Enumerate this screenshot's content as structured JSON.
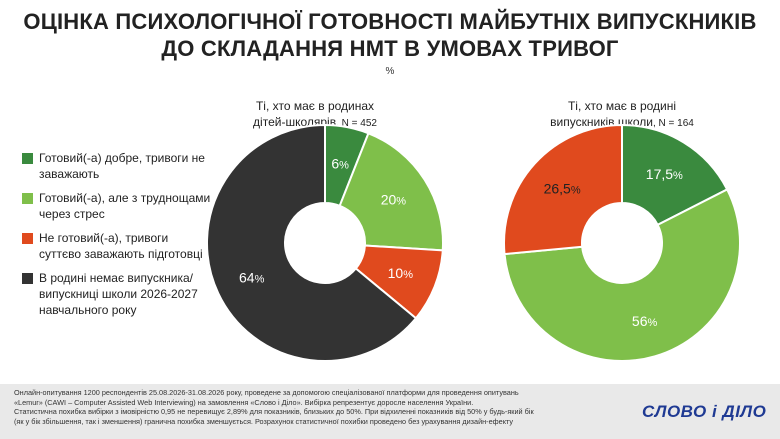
{
  "title_line1": "ОЦІНКА ПСИХОЛОГІЧНОЇ ГОТОВНОСТІ МАЙБУТНІХ ВИПУСКНИКІВ",
  "title_line2": "ДО СКЛАДАННЯ НМТ В УМОВАХ ТРИВОГ",
  "unit": "%",
  "legend": [
    {
      "label": "Готовий(-а) добре, тривоги не заважають",
      "color": "#3a8a3e"
    },
    {
      "label": "Готовий(-а), але з труднощами через стрес",
      "color": "#7fbf4a"
    },
    {
      "label": "Не готовий(-а), тривоги суттєво заважають підготовці",
      "color": "#e04a1e"
    },
    {
      "label": "В родині немає випускника/випускниці школи 2026-2027 навчального року",
      "color": "#333333"
    }
  ],
  "chart_data": [
    {
      "type": "pie",
      "subtitle_line1": "Ті, хто має в родинах",
      "subtitle_line2": "дітей-школярів",
      "n_label": ", N = 452",
      "categories": [
        "Готовий(-а) добре, тривоги не заважають",
        "Готовий(-а), але з труднощами через стрес",
        "Не готовий(-а), тривоги суттєво заважають підготовці",
        "В родині немає випускника/випускниці школи 2026-2027 навчального року"
      ],
      "values": [
        6,
        20,
        10,
        64
      ],
      "value_labels": [
        "6",
        "20",
        "10",
        "64"
      ],
      "colors": [
        "#3a8a3e",
        "#7fbf4a",
        "#e04a1e",
        "#333333"
      ],
      "label_colors": [
        "#ffffff",
        "#ffffff",
        "#ffffff",
        "#ffffff"
      ]
    },
    {
      "type": "pie",
      "subtitle_line1": "Ті, хто має в родині",
      "subtitle_line2": "випускників школи",
      "n_label": ", N = 164",
      "categories": [
        "Готовий(-а) добре, тривоги не заважають",
        "Готовий(-а), але з труднощами через стрес",
        "Не готовий(-а), тривоги суттєво заважають підготовці"
      ],
      "values": [
        17.5,
        56,
        26.5
      ],
      "value_labels": [
        "17,5",
        "56",
        "26,5"
      ],
      "colors": [
        "#3a8a3e",
        "#7fbf4a",
        "#e04a1e"
      ],
      "label_colors": [
        "#ffffff",
        "#ffffff",
        "#222222"
      ]
    }
  ],
  "footer_lines": [
    "Онлайн-опитування 1200 респондентів 25.08.2026-31.08.2026 року, проведене за допомогою спеціалізованої платформи для проведення опитувань",
    "«Lemur» (CAWI – Computer Assisted Web Interviewing) на замовлення «Слово і Діло». Вибірка репрезентує доросле населення України.",
    "Статистична похибка вибірки з імовірністю 0,95 не перевищує 2,89% для показників, близьких до 50%. При відхиленні показників від 50% у будь-який бік",
    "(як у бік збільшення, так і зменшення) гранична похибка зменшується. Розрахунок статистичної похибки проведено без урахування дизайн-ефекту"
  ],
  "logo": "СЛОВО і ДІЛО"
}
